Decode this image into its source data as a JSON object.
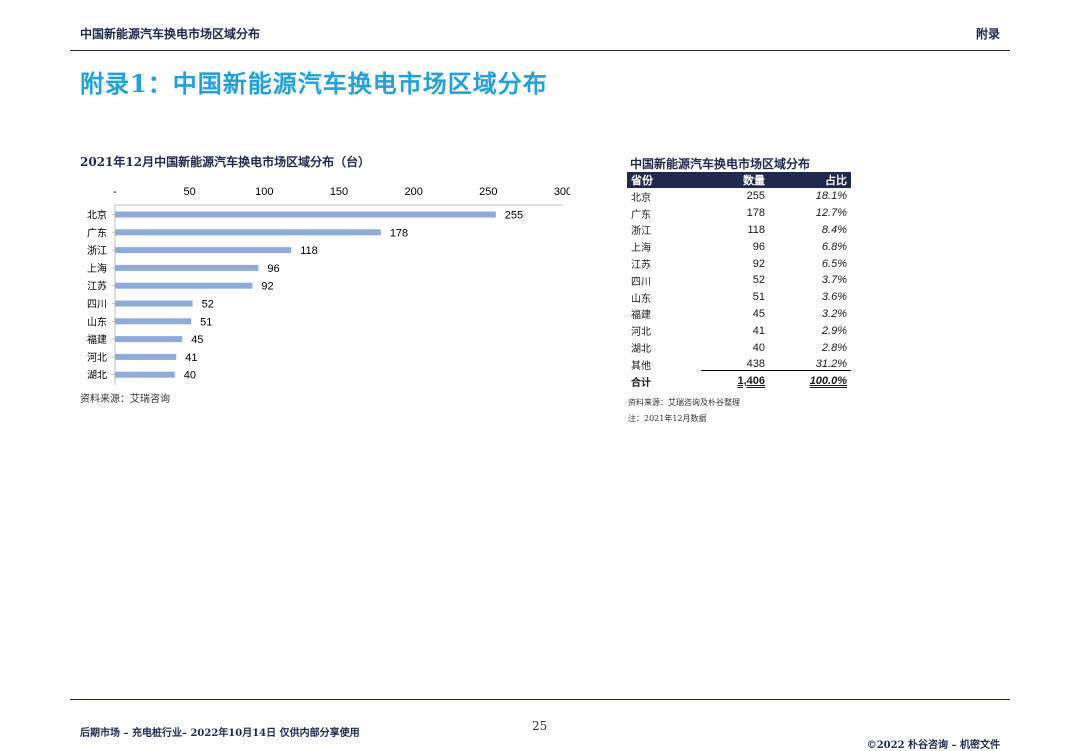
{
  "header": {
    "left": "中国新能源汽车换电市场区域分布",
    "right": "附录"
  },
  "page_title": "附录1：中国新能源汽车换电市场区域分布",
  "chart": {
    "title": "2021年12月中国新能源汽车换电市场区域分布（台）",
    "source": "资料来源：艾瑞咨询"
  },
  "chart_data": {
    "type": "bar",
    "orientation": "horizontal",
    "title": "2021年12月中国新能源汽车换电市场区域分布（台）",
    "categories": [
      "北京",
      "广东",
      "浙江",
      "上海",
      "江苏",
      "四川",
      "山东",
      "福建",
      "河北",
      "湖北"
    ],
    "values": [
      255,
      178,
      118,
      96,
      92,
      52,
      51,
      45,
      41,
      40
    ],
    "tick_labels": [
      "-",
      "50",
      "100",
      "150",
      "200",
      "250",
      "300"
    ],
    "xlim": [
      0,
      300
    ],
    "axis_position": "top",
    "grid": false,
    "bar_color": "#8faadc"
  },
  "table": {
    "title": "中国新能源汽车换电市场区域分布",
    "headers": [
      "省份",
      "数量",
      "占比"
    ],
    "rows": [
      [
        "北京",
        "255",
        "18.1%"
      ],
      [
        "广东",
        "178",
        "12.7%"
      ],
      [
        "浙江",
        "118",
        "8.4%"
      ],
      [
        "上海",
        "96",
        "6.8%"
      ],
      [
        "江苏",
        "92",
        "6.5%"
      ],
      [
        "四川",
        "52",
        "3.7%"
      ],
      [
        "山东",
        "51",
        "3.6%"
      ],
      [
        "福建",
        "45",
        "3.2%"
      ],
      [
        "河北",
        "41",
        "2.9%"
      ],
      [
        "湖北",
        "40",
        "2.8%"
      ],
      [
        "其他",
        "438",
        "31.2%"
      ]
    ],
    "total": [
      "合计",
      "1,406",
      "100.0%"
    ],
    "source": "资料来源：艾瑞咨询及朴谷整理",
    "note": "注：2021年12月数据"
  },
  "footer": {
    "left": "后期市场 – 充电桩行业– 2022年10月14日 仅供内部分享使用",
    "page": "25",
    "right": "©2022 朴谷咨询 – 机密文件"
  },
  "colors": {
    "title": "#1fa0e0",
    "navy": "#1f2a4f",
    "bar": "#8faadc"
  }
}
